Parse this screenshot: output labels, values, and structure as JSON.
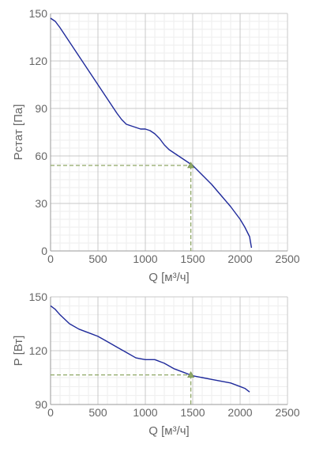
{
  "colors": {
    "curve": "#1f2a9b",
    "operating_point": "#8fa866",
    "grid_major": "#c8c8c8",
    "grid_minor": "#eeeeee",
    "text": "#666666"
  },
  "chart_data": [
    {
      "type": "line",
      "title": "",
      "xlabel": "Q [м³/ч]",
      "ylabel": "Pстат [Па]",
      "xlim": [
        0,
        2500
      ],
      "ylim": [
        0,
        150
      ],
      "x_ticks": [
        0,
        500,
        1000,
        1500,
        2000,
        2500
      ],
      "y_ticks": [
        0,
        30,
        60,
        90,
        120,
        150
      ],
      "x_tick_labels": [
        "0",
        "500",
        "1000",
        "1500",
        "2000",
        "2500"
      ],
      "y_tick_labels": [
        "0",
        "30",
        "60",
        "90",
        "120",
        "150"
      ],
      "grid": true,
      "series": [
        {
          "x": [
            0,
            50,
            100,
            200,
            300,
            400,
            500,
            600,
            700,
            750,
            800,
            850,
            900,
            950,
            1000,
            1050,
            1100,
            1150,
            1200,
            1250,
            1300,
            1350,
            1400,
            1450,
            1500,
            1550,
            1600,
            1700,
            1800,
            1900,
            2000,
            2050,
            2100,
            2120
          ],
          "y": [
            147,
            145,
            141,
            132,
            123,
            114,
            105,
            96,
            87,
            83,
            80,
            79,
            78,
            77,
            77,
            76,
            74,
            71,
            67,
            64,
            62,
            60,
            58,
            56,
            54,
            51,
            48,
            42,
            35,
            28,
            20,
            15,
            9,
            2
          ]
        }
      ],
      "operating_point": {
        "x": 1480,
        "y": 54
      }
    },
    {
      "type": "line",
      "title": "",
      "xlabel": "Q [м³/ч]",
      "ylabel": "P [Вт]",
      "xlim": [
        0,
        2500
      ],
      "ylim": [
        90,
        150
      ],
      "x_ticks": [
        0,
        500,
        1000,
        1500,
        2000,
        2500
      ],
      "y_ticks": [
        90,
        120,
        150
      ],
      "x_tick_labels": [
        "0",
        "500",
        "1000",
        "1500",
        "2000",
        "2500"
      ],
      "y_tick_labels": [
        "90",
        "120",
        "150"
      ],
      "grid": true,
      "series": [
        {
          "x": [
            0,
            50,
            100,
            200,
            300,
            400,
            500,
            600,
            700,
            800,
            900,
            1000,
            1100,
            1200,
            1300,
            1400,
            1500,
            1600,
            1700,
            1800,
            1900,
            2000,
            2050,
            2100
          ],
          "y": [
            145,
            143,
            140,
            135,
            132,
            130,
            128,
            125,
            122,
            119,
            116,
            115,
            115,
            113,
            110,
            108,
            106,
            105,
            104,
            103,
            102,
            100,
            99,
            97
          ]
        }
      ],
      "operating_point": {
        "x": 1480,
        "y": 106.5
      }
    }
  ]
}
